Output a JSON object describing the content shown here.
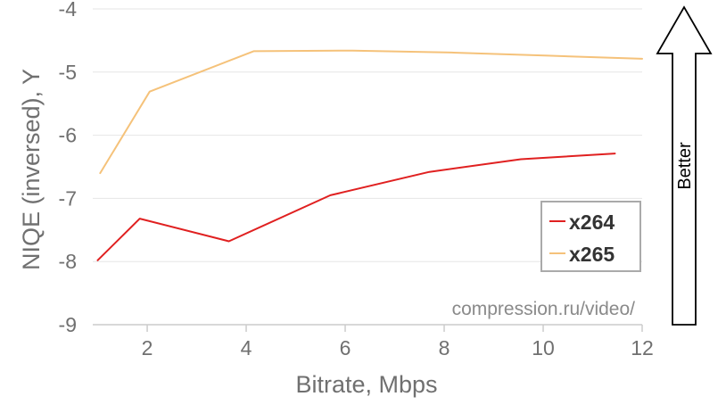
{
  "chart_data": {
    "type": "line",
    "title": "",
    "xlabel": "Bitrate, Mbps",
    "ylabel": "NIQE (inversed), Y",
    "xlim": [
      0.9,
      12
    ],
    "ylim": [
      -9,
      -4
    ],
    "xticks": [
      2,
      4,
      6,
      8,
      10,
      12
    ],
    "yticks": [
      -4,
      -5,
      -6,
      -7,
      -8,
      -9
    ],
    "grid": true,
    "legend_position": "bottom-right",
    "series": [
      {
        "name": "x264",
        "color": "#e02020",
        "x": [
          1.0,
          1.85,
          3.65,
          5.7,
          7.7,
          9.55,
          11.45
        ],
        "y": [
          -7.98,
          -7.32,
          -7.68,
          -6.95,
          -6.58,
          -6.38,
          -6.29
        ]
      },
      {
        "name": "x265",
        "color": "#f5c27a",
        "x": [
          1.05,
          2.05,
          4.15,
          6.15,
          8.15,
          10.1,
          12.0
        ],
        "y": [
          -6.6,
          -5.31,
          -4.67,
          -4.66,
          -4.69,
          -4.74,
          -4.79
        ]
      }
    ],
    "annotations": {
      "watermark": "compression.ru/video/",
      "arrow_label": "Better"
    }
  }
}
